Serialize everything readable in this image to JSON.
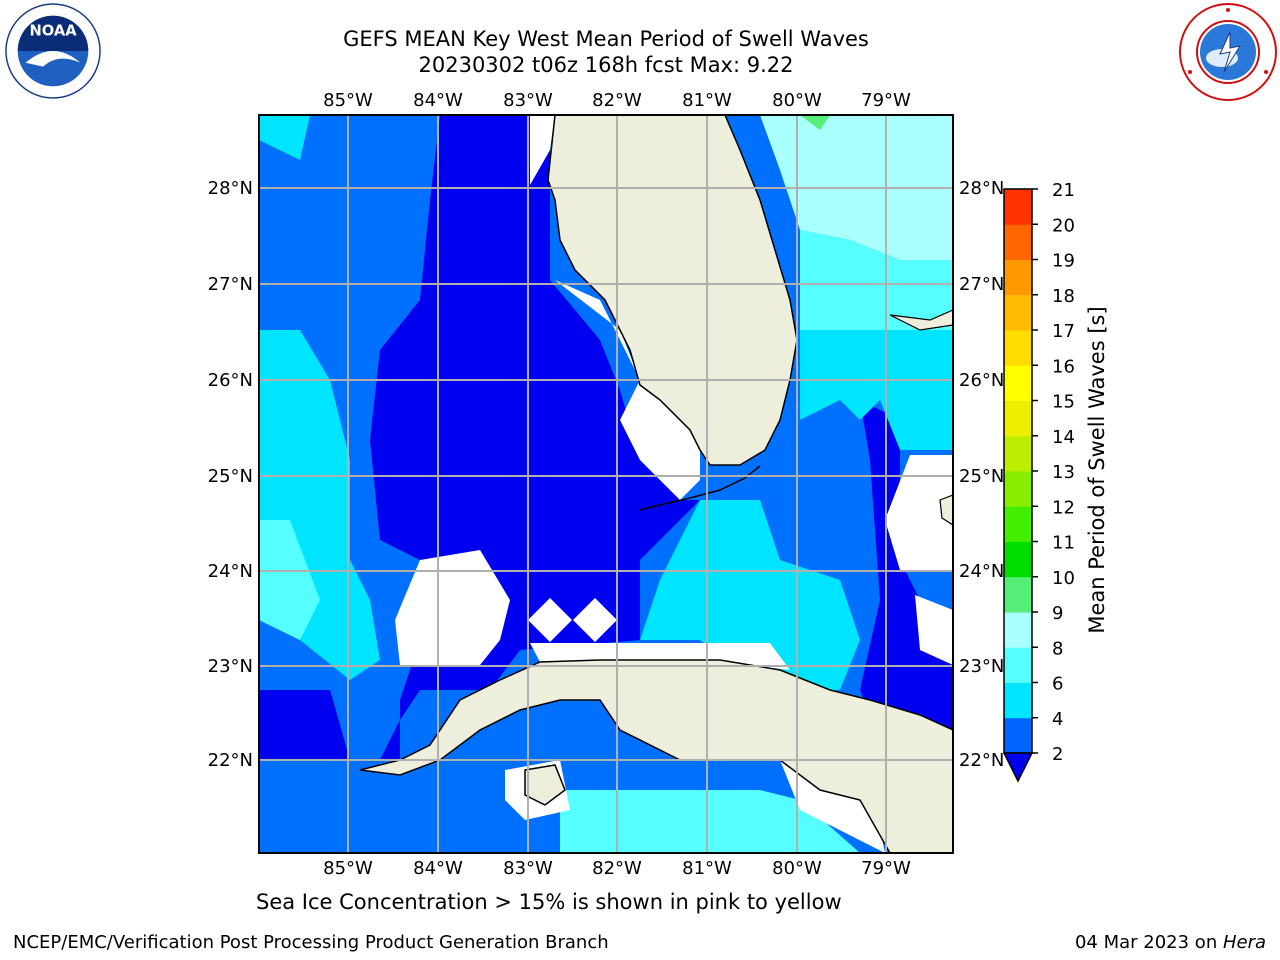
{
  "header": {
    "title_line1": "GEFS MEAN Key West Mean Period of Swell Waves",
    "title_line2": "20230302 t06z 168h fcst   Max: 9.22"
  },
  "logos": {
    "left": "noaa-logo",
    "right": "nws-logo"
  },
  "map": {
    "lon_labels": [
      "85°W",
      "84°W",
      "83°W",
      "82°W",
      "81°W",
      "80°W",
      "79°W"
    ],
    "lat_labels": [
      "28°N",
      "27°N",
      "26°N",
      "25°N",
      "24°N",
      "23°N",
      "22°N"
    ],
    "land_color": "#eeeedc",
    "ocean_base_color": "#0000f0",
    "note": "Sea Ice Concentration > 15% is shown in pink to yellow"
  },
  "colorbar": {
    "label": "Mean Period of Swell Waves [s]",
    "ticks": [
      "2",
      "4",
      "6",
      "8",
      "9",
      "10",
      "11",
      "12",
      "13",
      "14",
      "15",
      "16",
      "17",
      "18",
      "19",
      "20",
      "21"
    ],
    "colors": [
      "#0064ff",
      "#00e5ff",
      "#55ffff",
      "#aaffff",
      "#55ee77",
      "#00dd00",
      "#44ee00",
      "#88ee00",
      "#bbee00",
      "#eeee00",
      "#ffff00",
      "#ffdd00",
      "#ffbb00",
      "#ff9900",
      "#ff6600",
      "#ff3300"
    ],
    "extend_color": "#0000f0"
  },
  "footer": {
    "left": "NCEP/EMC/Verification Post Processing Product Generation Branch",
    "right_date": "04 Mar 2023 on ",
    "right_host": "Hera"
  }
}
